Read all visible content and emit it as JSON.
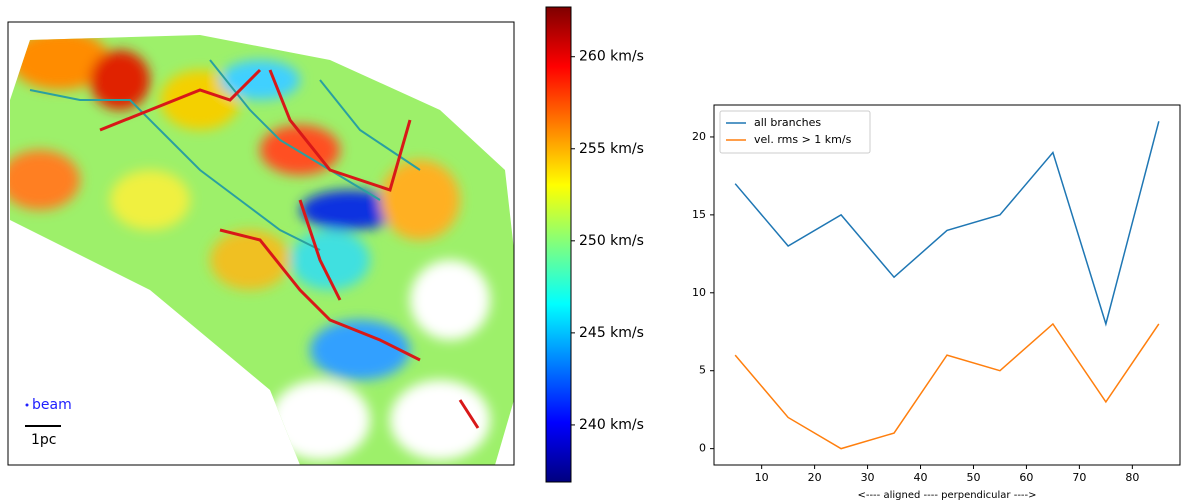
{
  "chart_data": [
    {
      "type": "image",
      "colormap": "jet",
      "clim": [
        236.9,
        262.7
      ],
      "cticks": [
        {
          "value": 240,
          "label": "240 km/s"
        },
        {
          "value": 245,
          "label": "245 km/s"
        },
        {
          "value": 250,
          "label": "250 km/s"
        },
        {
          "value": 255,
          "label": "255 km/s"
        },
        {
          "value": 260,
          "label": "260 km/s"
        }
      ],
      "annotations": [
        "beam",
        "1pc"
      ]
    },
    {
      "type": "line",
      "xlabel": "<---- aligned ---- perpendicular ---->",
      "x": [
        5,
        15,
        25,
        35,
        45,
        55,
        65,
        75,
        85
      ],
      "series": [
        {
          "name": "all branches",
          "color": "#1f77b4",
          "values": [
            17,
            13,
            15,
            11,
            14,
            15,
            19,
            8,
            21
          ]
        },
        {
          "name": "vel. rms > 1 km/s",
          "color": "#ff7f0e",
          "values": [
            6,
            2,
            0,
            1,
            6,
            5,
            8,
            3,
            8
          ]
        }
      ],
      "xlim": [
        1,
        89
      ],
      "ylim": [
        -1.05,
        22.05
      ],
      "xticks": [
        10,
        20,
        30,
        40,
        50,
        60,
        70,
        80
      ],
      "yticks": [
        0,
        5,
        10,
        15,
        20
      ],
      "legend": "upper left"
    }
  ]
}
